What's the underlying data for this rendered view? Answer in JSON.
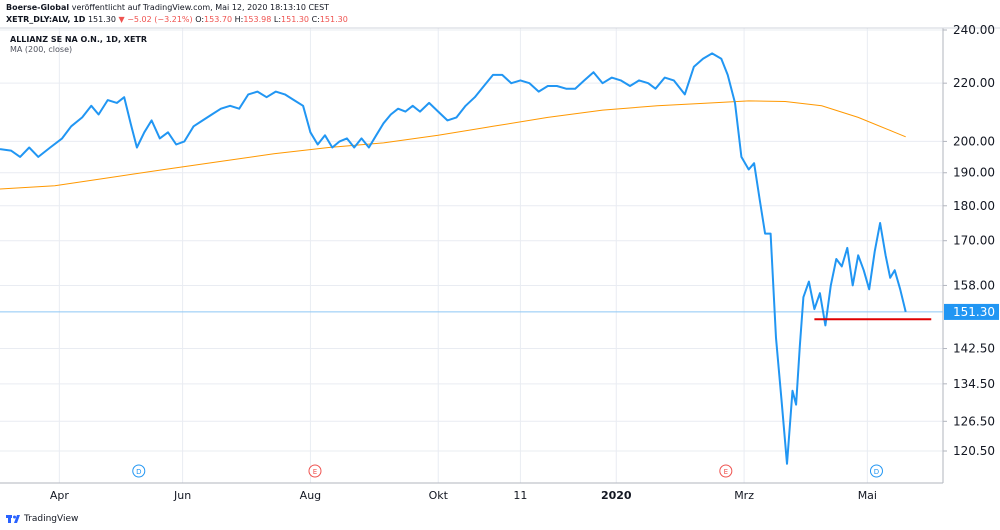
{
  "header": {
    "author": "Boerse-Global",
    "published": "veröffentlicht auf TradingView.com, Mai 12, 2020 18:13:10 CEST",
    "symbol": "XETR_DLY:ALV, 1D",
    "last": "151.30",
    "change_arrow": "▼",
    "change": "−5.02 (−3.21%)",
    "o_label": "O:",
    "o_value": "153.70",
    "h_label": "H:",
    "h_value": "153.98",
    "l_label": "L:",
    "l_value": "151.30",
    "c_label": "C:",
    "c_value": "151.30"
  },
  "legend": {
    "title": "ALLIANZ SE NA O.N., 1D, XETR",
    "ma_label": "MA (200, close)"
  },
  "price_badge": "151.30",
  "footer": {
    "brand": "TradingView"
  },
  "colors": {
    "price_line": "#2196f3",
    "ma_line": "#ff9800",
    "support_line": "#e00000",
    "grid": "#e9ecf2",
    "badge": "#2196f3"
  },
  "chart_data": {
    "type": "line",
    "y_scale": "log",
    "ylim": [
      115,
      242
    ],
    "y_ticks": [
      {
        "value": 240,
        "label": "240.00"
      },
      {
        "value": 220,
        "label": "220.00"
      },
      {
        "value": 200,
        "label": "200.00"
      },
      {
        "value": 190,
        "label": "190.00"
      },
      {
        "value": 180,
        "label": "180.00"
      },
      {
        "value": 170,
        "label": "170.00"
      },
      {
        "value": 158,
        "label": "158.00"
      },
      {
        "value": 142.5,
        "label": "142.50"
      },
      {
        "value": 134.5,
        "label": "134.50"
      },
      {
        "value": 126.5,
        "label": "126.50"
      },
      {
        "value": 120.5,
        "label": "120.50"
      }
    ],
    "x_ticks": [
      {
        "t": 0.065,
        "label": "Apr",
        "bold": false
      },
      {
        "t": 0.2,
        "label": "Jun",
        "bold": false
      },
      {
        "t": 0.34,
        "label": "Aug",
        "bold": false
      },
      {
        "t": 0.48,
        "label": "Okt",
        "bold": false
      },
      {
        "t": 0.57,
        "label": "11",
        "bold": false
      },
      {
        "t": 0.675,
        "label": "2020",
        "bold": true
      },
      {
        "t": 0.815,
        "label": "Mrz",
        "bold": false
      },
      {
        "t": 0.95,
        "label": "Mai",
        "bold": false
      }
    ],
    "events": [
      {
        "t": 0.152,
        "label": "D"
      },
      {
        "t": 0.345,
        "label": "E"
      },
      {
        "t": 0.795,
        "label": "E"
      },
      {
        "t": 0.96,
        "label": "D"
      }
    ],
    "series": [
      {
        "role": "price",
        "points": [
          [
            0.0,
            197.5
          ],
          [
            0.012,
            197
          ],
          [
            0.022,
            195
          ],
          [
            0.032,
            198
          ],
          [
            0.042,
            195
          ],
          [
            0.055,
            198
          ],
          [
            0.068,
            201
          ],
          [
            0.078,
            205
          ],
          [
            0.09,
            208
          ],
          [
            0.1,
            212
          ],
          [
            0.108,
            209
          ],
          [
            0.118,
            214
          ],
          [
            0.128,
            213
          ],
          [
            0.136,
            215
          ],
          [
            0.143,
            206
          ],
          [
            0.15,
            198
          ],
          [
            0.158,
            203
          ],
          [
            0.166,
            207
          ],
          [
            0.175,
            201
          ],
          [
            0.184,
            203
          ],
          [
            0.193,
            199
          ],
          [
            0.202,
            200
          ],
          [
            0.212,
            205
          ],
          [
            0.222,
            207
          ],
          [
            0.232,
            209
          ],
          [
            0.242,
            211
          ],
          [
            0.252,
            212
          ],
          [
            0.262,
            211
          ],
          [
            0.272,
            216
          ],
          [
            0.282,
            217
          ],
          [
            0.292,
            215
          ],
          [
            0.302,
            217
          ],
          [
            0.312,
            216
          ],
          [
            0.322,
            214
          ],
          [
            0.332,
            212
          ],
          [
            0.34,
            203
          ],
          [
            0.348,
            199
          ],
          [
            0.356,
            202
          ],
          [
            0.364,
            198
          ],
          [
            0.372,
            200
          ],
          [
            0.38,
            201
          ],
          [
            0.388,
            198
          ],
          [
            0.396,
            201
          ],
          [
            0.404,
            198
          ],
          [
            0.412,
            202
          ],
          [
            0.42,
            206
          ],
          [
            0.428,
            209
          ],
          [
            0.436,
            211
          ],
          [
            0.444,
            210
          ],
          [
            0.452,
            212
          ],
          [
            0.46,
            210
          ],
          [
            0.47,
            213
          ],
          [
            0.48,
            210
          ],
          [
            0.49,
            207
          ],
          [
            0.5,
            208
          ],
          [
            0.51,
            212
          ],
          [
            0.52,
            215
          ],
          [
            0.53,
            219
          ],
          [
            0.54,
            223
          ],
          [
            0.55,
            223
          ],
          [
            0.56,
            220
          ],
          [
            0.57,
            221
          ],
          [
            0.58,
            220
          ],
          [
            0.59,
            217
          ],
          [
            0.6,
            219
          ],
          [
            0.61,
            219
          ],
          [
            0.62,
            218
          ],
          [
            0.63,
            218
          ],
          [
            0.64,
            221
          ],
          [
            0.65,
            224
          ],
          [
            0.66,
            220
          ],
          [
            0.67,
            222
          ],
          [
            0.68,
            221
          ],
          [
            0.69,
            219
          ],
          [
            0.7,
            221
          ],
          [
            0.71,
            220
          ],
          [
            0.718,
            218
          ],
          [
            0.728,
            222
          ],
          [
            0.738,
            221
          ],
          [
            0.75,
            216
          ],
          [
            0.76,
            226
          ],
          [
            0.77,
            229
          ],
          [
            0.78,
            231
          ],
          [
            0.79,
            229
          ],
          [
            0.797,
            223
          ],
          [
            0.805,
            213
          ],
          [
            0.812,
            195
          ],
          [
            0.82,
            191
          ],
          [
            0.826,
            193
          ],
          [
            0.832,
            182
          ],
          [
            0.838,
            172
          ],
          [
            0.844,
            172
          ],
          [
            0.85,
            145
          ],
          [
            0.856,
            131
          ],
          [
            0.862,
            118
          ],
          [
            0.868,
            133
          ],
          [
            0.872,
            130
          ],
          [
            0.876,
            143
          ],
          [
            0.88,
            155
          ],
          [
            0.886,
            159
          ],
          [
            0.892,
            152
          ],
          [
            0.898,
            156
          ],
          [
            0.904,
            148
          ],
          [
            0.91,
            158
          ],
          [
            0.916,
            165
          ],
          [
            0.922,
            163
          ],
          [
            0.928,
            168
          ],
          [
            0.934,
            158
          ],
          [
            0.94,
            166
          ],
          [
            0.946,
            162
          ],
          [
            0.952,
            157
          ],
          [
            0.958,
            167
          ],
          [
            0.964,
            175
          ],
          [
            0.97,
            166
          ],
          [
            0.975,
            160
          ],
          [
            0.98,
            162
          ],
          [
            0.986,
            157
          ],
          [
            0.992,
            151.3
          ]
        ]
      },
      {
        "role": "ma",
        "points": [
          [
            0.0,
            185.0
          ],
          [
            0.06,
            186
          ],
          [
            0.12,
            188.5
          ],
          [
            0.18,
            191
          ],
          [
            0.24,
            193.5
          ],
          [
            0.3,
            196
          ],
          [
            0.36,
            198
          ],
          [
            0.42,
            199.5
          ],
          [
            0.48,
            202
          ],
          [
            0.54,
            205
          ],
          [
            0.6,
            208
          ],
          [
            0.66,
            210.5
          ],
          [
            0.72,
            212
          ],
          [
            0.78,
            213
          ],
          [
            0.82,
            213.7
          ],
          [
            0.86,
            213.5
          ],
          [
            0.9,
            212
          ],
          [
            0.94,
            208
          ],
          [
            0.98,
            203
          ],
          [
            0.992,
            201.5
          ]
        ]
      }
    ],
    "support_line": {
      "t_start": 0.892,
      "t_end": 1.02,
      "value": 149.5
    },
    "last_price": 151.3
  }
}
